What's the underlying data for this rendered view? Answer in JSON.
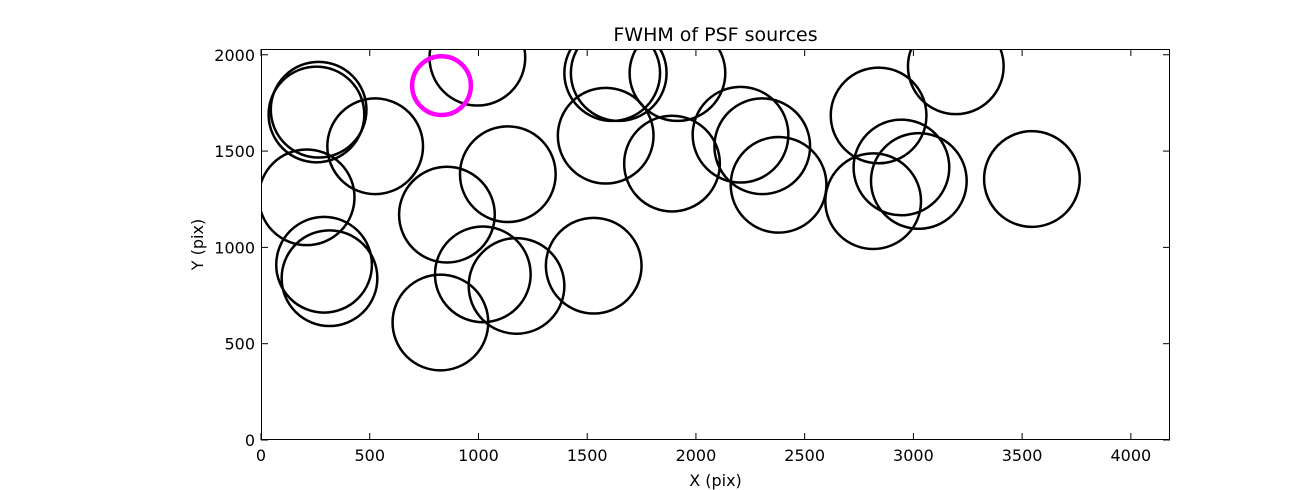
{
  "chart_data": {
    "type": "scatter",
    "title": "FWHM of PSF sources",
    "xlabel": "X (pix)",
    "ylabel": "Y (pix)",
    "xlim": [
      0,
      4180
    ],
    "ylim": [
      0,
      2030
    ],
    "xticks": [
      0,
      500,
      1000,
      1500,
      2000,
      2500,
      3000,
      3500,
      4000
    ],
    "yticks": [
      0,
      500,
      1000,
      1500,
      2000
    ],
    "grid": false,
    "marker": "circle",
    "radius_units": "pix",
    "circle_radius": 220,
    "colors": {
      "default": "#000000",
      "highlight": "#ff00ff"
    },
    "sources": [
      {
        "x": 995,
        "y": 1985,
        "r": 220
      },
      {
        "x": 1615,
        "y": 1905,
        "r": 220
      },
      {
        "x": 1645,
        "y": 1905,
        "r": 220
      },
      {
        "x": 1915,
        "y": 1905,
        "r": 220
      },
      {
        "x": 3195,
        "y": 1940,
        "r": 220
      },
      {
        "x": 265,
        "y": 1715,
        "r": 220
      },
      {
        "x": 255,
        "y": 1690,
        "r": 220
      },
      {
        "x": 525,
        "y": 1525,
        "r": 220
      },
      {
        "x": 1585,
        "y": 1580,
        "r": 220
      },
      {
        "x": 2205,
        "y": 1585,
        "r": 220
      },
      {
        "x": 2305,
        "y": 1525,
        "r": 220
      },
      {
        "x": 2840,
        "y": 1685,
        "r": 220
      },
      {
        "x": 2945,
        "y": 1415,
        "r": 220
      },
      {
        "x": 1135,
        "y": 1380,
        "r": 220
      },
      {
        "x": 1890,
        "y": 1435,
        "r": 220
      },
      {
        "x": 2380,
        "y": 1325,
        "r": 220
      },
      {
        "x": 3025,
        "y": 1345,
        "r": 220
      },
      {
        "x": 3545,
        "y": 1355,
        "r": 220
      },
      {
        "x": 210,
        "y": 1260,
        "r": 220
      },
      {
        "x": 855,
        "y": 1170,
        "r": 220
      },
      {
        "x": 2815,
        "y": 1240,
        "r": 220
      },
      {
        "x": 290,
        "y": 910,
        "r": 220
      },
      {
        "x": 315,
        "y": 840,
        "r": 220
      },
      {
        "x": 1020,
        "y": 860,
        "r": 220
      },
      {
        "x": 1175,
        "y": 800,
        "r": 220
      },
      {
        "x": 1530,
        "y": 905,
        "r": 220
      },
      {
        "x": 825,
        "y": 610,
        "r": 220
      },
      {
        "x": 830,
        "y": 1840,
        "r": 135,
        "highlight": true
      }
    ]
  }
}
